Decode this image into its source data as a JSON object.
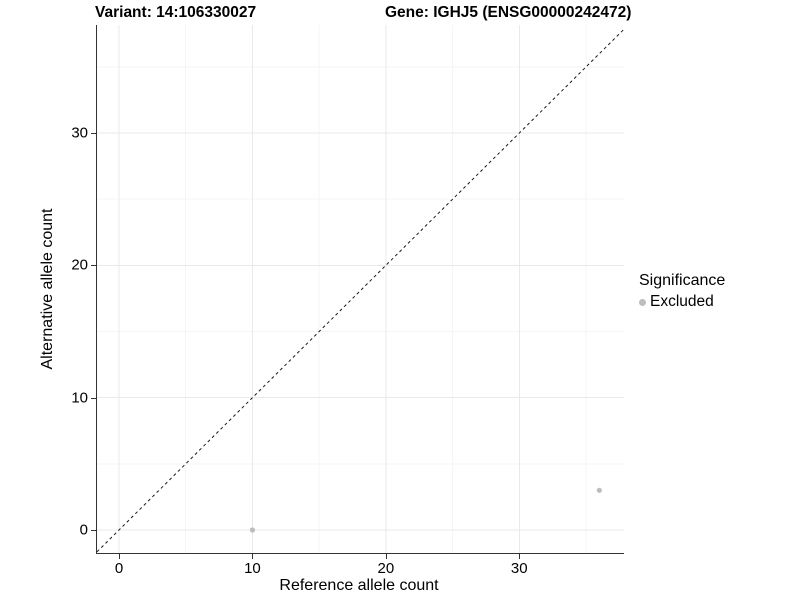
{
  "colors": {
    "background": "#ffffff",
    "axis_line": "#333333",
    "grid_major": "#e9e9e9",
    "grid_minor": "#f5f5f5",
    "reference_line": "#1a1a1a",
    "point": "#bdbdbd",
    "text": "#000000"
  },
  "chart_data": {
    "type": "scatter",
    "titles": {
      "left": "Variant: 14:106330027",
      "right": "Gene: IGHJ5 (ENSG00000242472)"
    },
    "xlabel": "Reference allele count",
    "ylabel": "Alternative allele count",
    "xlim": [
      -1.65,
      37.85
    ],
    "ylim": [
      -1.74,
      38.17
    ],
    "x_major_ticks": [
      0,
      10,
      20,
      30
    ],
    "y_major_ticks": [
      0,
      10,
      20,
      30
    ],
    "x_minor_ticks": [
      5,
      15,
      25,
      35
    ],
    "y_minor_ticks": [
      5,
      15,
      25,
      35
    ],
    "grid": true,
    "reference_line": {
      "type": "identity y=x",
      "style": "dashed"
    },
    "series": [
      {
        "name": "Excluded",
        "color": "#bdbdbd",
        "points": [
          {
            "x": 10,
            "y": 0
          },
          {
            "x": 36,
            "y": 3
          }
        ]
      }
    ],
    "legend": {
      "title": "Significance",
      "position": "right",
      "items": [
        {
          "label": "Excluded",
          "color": "#bdbdbd"
        }
      ]
    }
  }
}
